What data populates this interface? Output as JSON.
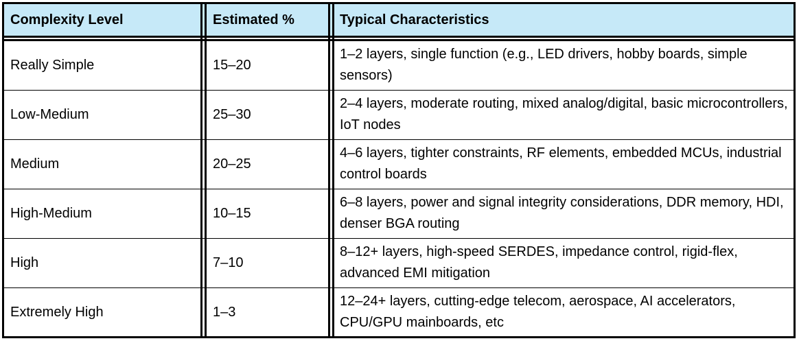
{
  "table": {
    "headers": [
      "Complexity Level",
      "Estimated %",
      "Typical Characteristics"
    ],
    "rows": [
      [
        "Really Simple",
        "15–20",
        "1–2 layers, single function (e.g., LED drivers, hobby boards, simple sensors)"
      ],
      [
        "Low-Medium",
        "25–30",
        "2–4 layers, moderate routing, mixed analog/digital, basic microcontrollers, IoT nodes"
      ],
      [
        "Medium",
        "20–25",
        "4–6 layers, tighter constraints, RF elements, embedded MCUs, industrial control boards"
      ],
      [
        "High-Medium",
        "10–15",
        "6–8 layers, power and signal integrity considerations, DDR memory, HDI, denser BGA routing"
      ],
      [
        "High",
        "7–10",
        "8–12+ layers, high-speed SERDES, impedance control, rigid-flex, advanced EMI mitigation"
      ],
      [
        "Extremely High",
        "1–3",
        "12–24+ layers, cutting-edge telecom, aerospace, AI accelerators, CPU/GPU mainboards, etc"
      ]
    ]
  }
}
